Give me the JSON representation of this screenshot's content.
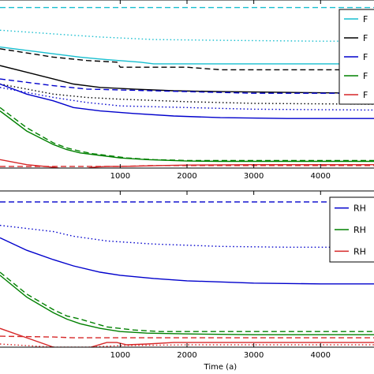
{
  "chart_data": [
    {
      "type": "line",
      "xlabel": "",
      "ylabel": "",
      "xlim": [
        -800,
        4800
      ],
      "ylim": [
        0,
        100
      ],
      "xticks": [
        1000,
        2000,
        3000,
        4000
      ],
      "xtick_labels": [
        "1000",
        "2000",
        "3000",
        "4000"
      ],
      "legend_position": "top-right",
      "grid": false,
      "legend": [
        {
          "label": "F",
          "color": "#17becf"
        },
        {
          "label": "F",
          "color": "#000000"
        },
        {
          "label": "F",
          "color": "#0000cc"
        },
        {
          "label": "F",
          "color": "#008000"
        },
        {
          "label": "F",
          "color": "#d62728"
        }
      ],
      "series": [
        {
          "color": "#17becf",
          "style": "dashed",
          "x": [
            -800,
            4800
          ],
          "y": [
            95.5,
            95.5
          ]
        },
        {
          "color": "#17becf",
          "style": "dotted",
          "x": [
            -800,
            300,
            700,
            1500,
            2500,
            4000,
            4800
          ],
          "y": [
            82,
            79,
            78,
            76.5,
            76,
            75.5,
            75.5
          ]
        },
        {
          "color": "#17becf",
          "style": "solid",
          "x": [
            -800,
            0,
            400,
            800,
            1300,
            1500,
            2000,
            3000,
            4000,
            4800
          ],
          "y": [
            72,
            68,
            66,
            64.5,
            63,
            62,
            62,
            62,
            62,
            62
          ]
        },
        {
          "color": "#000000",
          "style": "dashed",
          "x": [
            -800,
            0,
            500,
            950,
            1000,
            2000,
            2500,
            3000,
            4000,
            4800
          ],
          "y": [
            71,
            66,
            64,
            63,
            60,
            60,
            58.5,
            58.5,
            58.5,
            58.5
          ]
        },
        {
          "color": "#000000",
          "style": "solid",
          "x": [
            -800,
            -400,
            0,
            300,
            700,
            1200,
            1800,
            2500,
            3500,
            4800
          ],
          "y": [
            61,
            57,
            53,
            50,
            48,
            47,
            46,
            45.5,
            45,
            44.5
          ]
        },
        {
          "color": "#000000",
          "style": "dotted",
          "x": [
            -800,
            0,
            500,
            1000,
            2000,
            3000,
            4800
          ],
          "y": [
            50,
            44,
            42,
            41,
            39.5,
            38.5,
            38
          ]
        },
        {
          "color": "#0000cc",
          "style": "dashed",
          "x": [
            -800,
            0,
            500,
            1000,
            2000,
            3000,
            4000,
            4800
          ],
          "y": [
            53,
            49,
            47,
            46.5,
            45.5,
            44.5,
            44.5,
            44.5
          ]
        },
        {
          "color": "#0000cc",
          "style": "dotted",
          "x": [
            -800,
            0,
            500,
            1000,
            2000,
            3000,
            4800
          ],
          "y": [
            48,
            42,
            39,
            37,
            36,
            35,
            34.5
          ]
        },
        {
          "color": "#0000cc",
          "style": "solid",
          "x": [
            -800,
            -400,
            0,
            300,
            700,
            1200,
            1800,
            2500,
            3500,
            4800
          ],
          "y": [
            50,
            44,
            40,
            36,
            34,
            32.5,
            31,
            30,
            29.5,
            29.5
          ]
        },
        {
          "color": "#008000",
          "style": "dashed",
          "x": [
            -800,
            -400,
            0,
            200,
            400,
            600,
            800,
            1100,
            1500,
            2000,
            2500,
            3000,
            4800
          ],
          "y": [
            36,
            24,
            15,
            12,
            10,
            8.5,
            7.5,
            6,
            5,
            4.5,
            4.5,
            4.5,
            4.5
          ]
        },
        {
          "color": "#008000",
          "style": "solid",
          "x": [
            -800,
            -400,
            0,
            200,
            400,
            700,
            1000,
            1400,
            2000,
            2500,
            3000,
            4800
          ],
          "y": [
            34,
            22,
            14,
            11,
            9,
            7.5,
            6,
            5,
            4.2,
            4,
            4,
            4
          ]
        },
        {
          "color": "#d62728",
          "style": "dashed",
          "x": [
            -800,
            0,
            500,
            1000,
            1500,
            2000,
            4800
          ],
          "y": [
            1,
            1,
            1,
            1,
            1.5,
            1.5,
            1.5
          ]
        },
        {
          "color": "#d62728",
          "style": "solid",
          "x": [
            -800,
            -400,
            0,
            150,
            300,
            450,
            600,
            800,
            1000,
            1300,
            1600,
            2000,
            3000,
            4800
          ],
          "y": [
            5,
            2,
            0.5,
            -0.5,
            -1,
            -0.5,
            0.5,
            1,
            1,
            1.2,
            1.5,
            1.8,
            2,
            2
          ]
        }
      ]
    },
    {
      "type": "line",
      "xlabel": "Time (a)",
      "ylabel": "",
      "xlim": [
        -800,
        4800
      ],
      "ylim": [
        0,
        100
      ],
      "xticks": [
        1000,
        2000,
        3000,
        4000
      ],
      "xtick_labels": [
        "1000",
        "2000",
        "3000",
        "4000"
      ],
      "legend_position": "top-right",
      "grid": false,
      "legend": [
        {
          "label": "RH",
          "color": "#0000cc"
        },
        {
          "label": "RH",
          "color": "#008000"
        },
        {
          "label": "RH",
          "color": "#d62728"
        }
      ],
      "series": [
        {
          "color": "#0000cc",
          "style": "dashed",
          "x": [
            -800,
            4800
          ],
          "y": [
            93,
            93
          ]
        },
        {
          "color": "#0000cc",
          "style": "dotted",
          "x": [
            -800,
            0,
            300,
            800,
            1500,
            2500,
            3500,
            4800
          ],
          "y": [
            78,
            74,
            71,
            68,
            66,
            64.5,
            64,
            64
          ]
        },
        {
          "color": "#0000cc",
          "style": "solid",
          "x": [
            -800,
            -400,
            0,
            300,
            700,
            1000,
            1500,
            2000,
            3000,
            4000,
            4800
          ],
          "y": [
            70,
            62,
            56,
            52,
            48,
            46,
            44,
            42.5,
            41,
            40.5,
            40.5
          ]
        },
        {
          "color": "#008000",
          "style": "dashed",
          "x": [
            -800,
            -400,
            0,
            200,
            400,
            800,
            1200,
            1600,
            2000,
            3000,
            4800
          ],
          "y": [
            48,
            34,
            24,
            20,
            18,
            13,
            11,
            10,
            10,
            10,
            10
          ]
        },
        {
          "color": "#008000",
          "style": "solid",
          "x": [
            -800,
            -400,
            0,
            200,
            400,
            700,
            1000,
            1400,
            2000,
            3000,
            4800
          ],
          "y": [
            46,
            32,
            22,
            18,
            15,
            12,
            10,
            9,
            8.5,
            8,
            8
          ]
        },
        {
          "color": "#d62728",
          "style": "dashed",
          "x": [
            -800,
            0,
            300,
            600,
            1000,
            2000,
            4800
          ],
          "y": [
            7,
            6.5,
            6,
            6,
            6,
            6,
            6
          ]
        },
        {
          "color": "#d62728",
          "style": "solid",
          "x": [
            -800,
            -400,
            0,
            150,
            300,
            450,
            600,
            800,
            950,
            1100,
            1400,
            1800,
            3000,
            4800
          ],
          "y": [
            12,
            6,
            0,
            -1,
            -2,
            -1.5,
            0.5,
            3,
            3,
            1.5,
            2,
            3,
            3,
            3
          ]
        },
        {
          "color": "#d62728",
          "style": "dotted",
          "x": [
            -800,
            0,
            500,
            1000,
            2000,
            4800
          ],
          "y": [
            2,
            0,
            0,
            1,
            1.5,
            1.5
          ]
        }
      ]
    }
  ]
}
